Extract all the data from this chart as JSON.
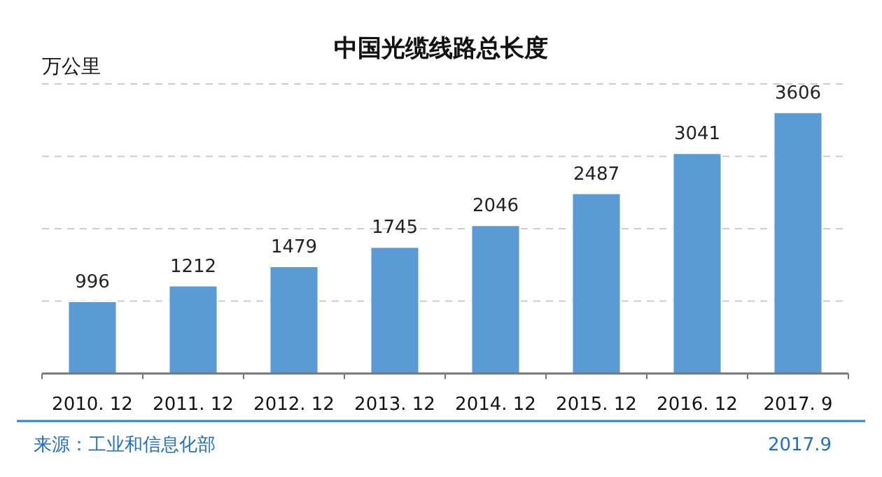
{
  "chart_data": {
    "type": "bar",
    "title": "中国光缆线路总长度",
    "ylabel": "万公里",
    "categories": [
      "2010. 12",
      "2011. 12",
      "2012. 12",
      "2013. 12",
      "2014. 12",
      "2015. 12",
      "2016. 12",
      "2017. 9"
    ],
    "values": [
      996,
      1212,
      1479,
      1745,
      2046,
      2487,
      3041,
      3606
    ],
    "color": "#5b9bd5",
    "ylim": [
      0,
      4000
    ],
    "yticks": [
      {
        "value": 0,
        "label": null
      },
      {
        "value": 1000,
        "label": null
      },
      {
        "value": 2000,
        "label": null
      },
      {
        "value": 3000,
        "label": null
      },
      {
        "value": 4000,
        "label": null
      }
    ],
    "tick_labels": "x",
    "grid": "y",
    "data_labels": true,
    "annotations": [
      "来源：工业和信息化部",
      "2017.9"
    ]
  }
}
